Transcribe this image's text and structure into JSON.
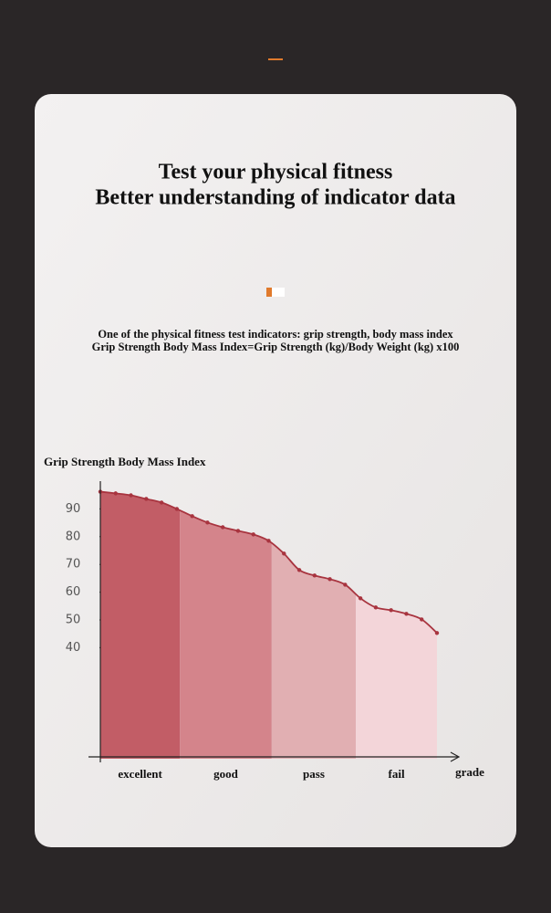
{
  "header": {
    "title": [
      "Test your physical fitness",
      "Better understanding of indicator data"
    ],
    "description": [
      "One of the physical fitness test indicators: grip strength, body mass index",
      "Grip Strength Body Mass Index=Grip Strength (kg)/Body Weight (kg) x100"
    ]
  },
  "chart_data": {
    "type": "area",
    "y_label": "Grip Strength Body Mass Index",
    "x_label": "grade",
    "x": [
      0,
      1,
      2,
      3,
      4,
      5,
      6,
      7,
      8,
      9,
      10,
      11,
      12,
      13,
      14,
      15,
      16,
      17,
      18,
      19,
      20,
      21,
      22
    ],
    "values": [
      96.2,
      95.6,
      94.9,
      93.6,
      92.3,
      90,
      87.4,
      85.1,
      83.4,
      82.1,
      80.8,
      78.5,
      73.9,
      68,
      66,
      64.7,
      62.7,
      57.8,
      54.5,
      53.5,
      52.2,
      50.2,
      45.3
    ],
    "color": "#a8343f",
    "xlim": [
      0,
      22
    ],
    "ylim": [
      0,
      100
    ],
    "yticks": [
      40,
      50,
      60,
      70,
      80,
      90
    ],
    "bands": {
      "edges": [
        0,
        5.2,
        11.2,
        16.7,
        22
      ],
      "labels": [
        "excellent",
        "good",
        "pass",
        "fail"
      ],
      "colors": [
        "#c25d66",
        "#d4848b",
        "#e1afb2",
        "#f3d5d9"
      ]
    }
  }
}
